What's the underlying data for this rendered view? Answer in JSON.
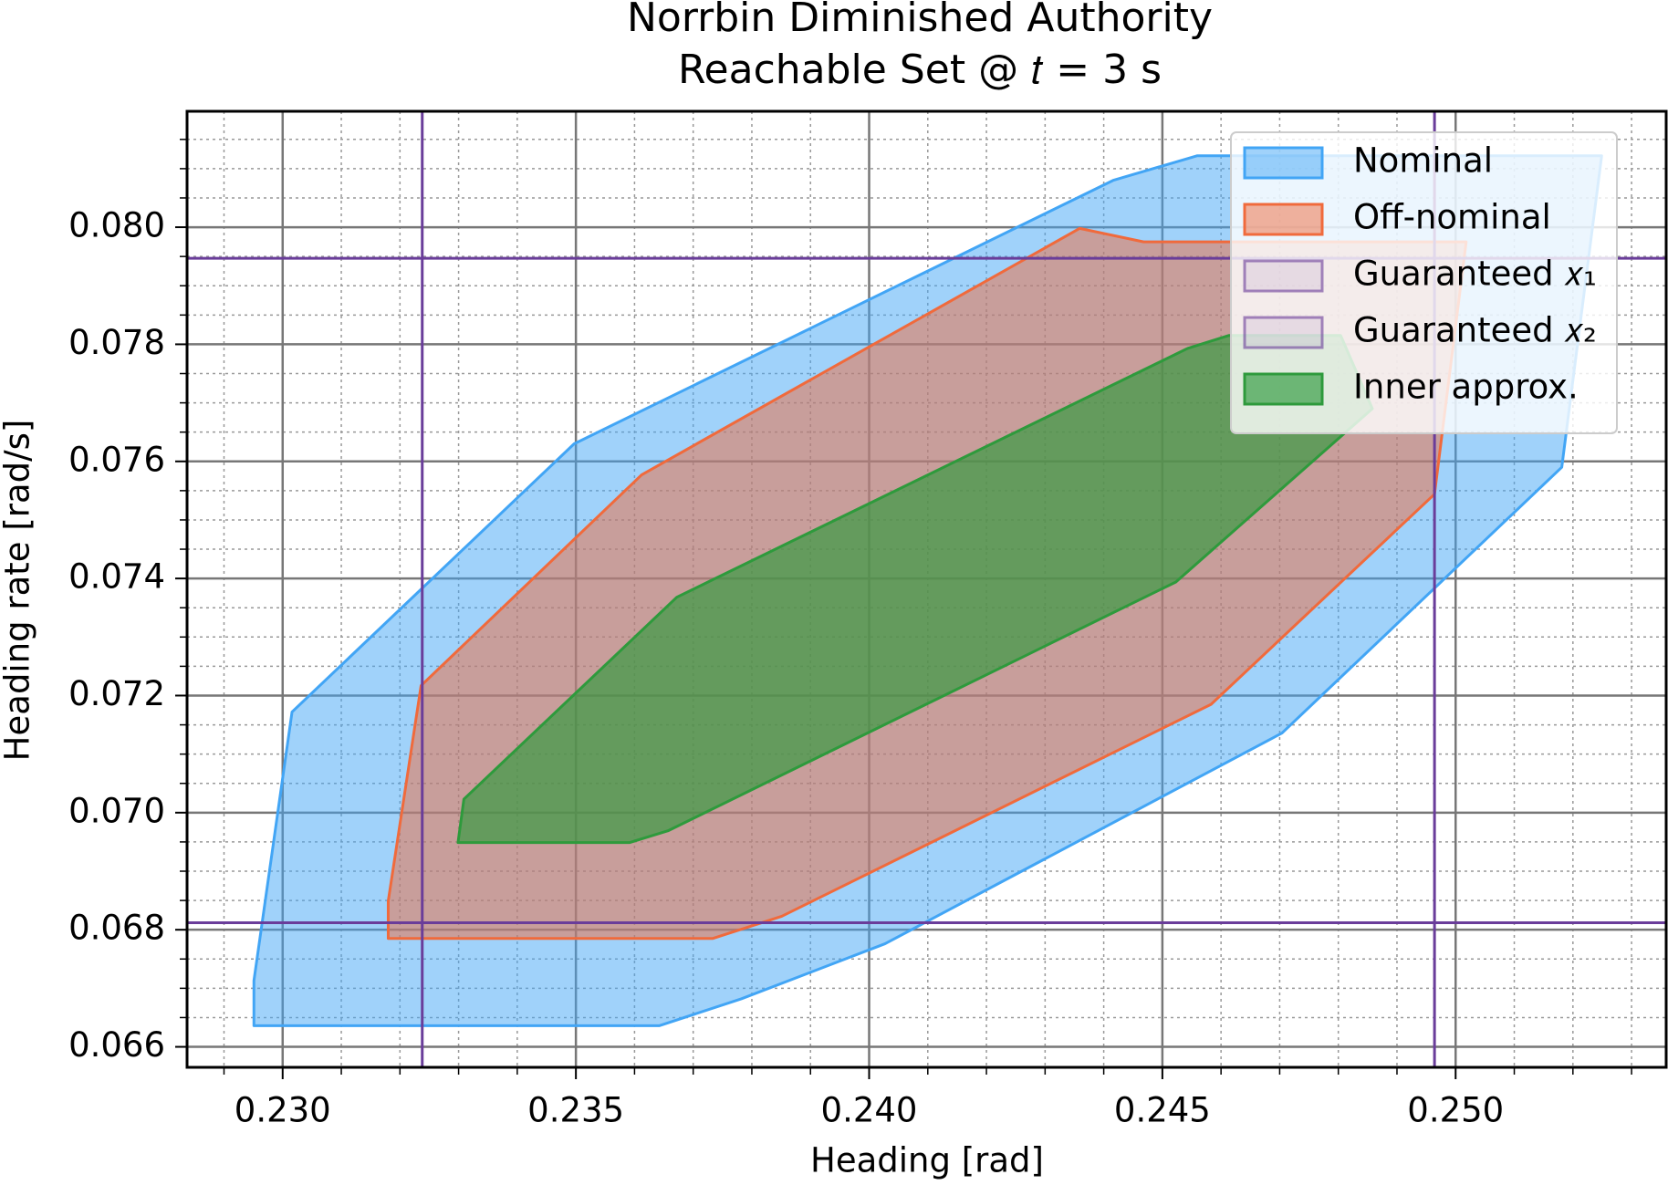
{
  "chart_data": {
    "type": "polygon",
    "title": [
      "Norrbin Diminished Authority",
      "Reachable Set @ 𝑡 = 3 s"
    ],
    "x_label": "Heading [rad]",
    "y_label": "Heading rate [rad/s]",
    "xlim": [
      0.22837,
      0.25359
    ],
    "ylim": [
      0.06565,
      0.08198
    ],
    "xticks": [
      {
        "value": 0.23,
        "label": "0.230"
      },
      {
        "value": 0.235,
        "label": "0.235"
      },
      {
        "value": 0.24,
        "label": "0.240"
      },
      {
        "value": 0.245,
        "label": "0.245"
      },
      {
        "value": 0.25,
        "label": "0.250"
      }
    ],
    "yticks": [
      {
        "value": 0.066,
        "label": "0.066"
      },
      {
        "value": 0.068,
        "label": "0.068"
      },
      {
        "value": 0.07,
        "label": "0.070"
      },
      {
        "value": 0.072,
        "label": "0.072"
      },
      {
        "value": 0.074,
        "label": "0.074"
      },
      {
        "value": 0.076,
        "label": "0.076"
      },
      {
        "value": 0.078,
        "label": "0.078"
      },
      {
        "value": 0.08,
        "label": "0.080"
      }
    ],
    "xminorticks": [
      0.229,
      0.231,
      0.232,
      0.233,
      0.234,
      0.236,
      0.237,
      0.238,
      0.239,
      0.241,
      0.242,
      0.243,
      0.244,
      0.246,
      0.247,
      0.248,
      0.249,
      0.251,
      0.252,
      0.253
    ],
    "yminorticks": [
      0.0665,
      0.067,
      0.0675,
      0.0685,
      0.069,
      0.0695,
      0.0705,
      0.071,
      0.0715,
      0.0725,
      0.073,
      0.0735,
      0.0745,
      0.075,
      0.0755,
      0.0765,
      0.077,
      0.0775,
      0.0785,
      0.079,
      0.0795,
      0.0805,
      0.081,
      0.0815
    ],
    "grid": true,
    "minor_grid": true,
    "legend": "upper right",
    "series": [
      {
        "name": "Nominal",
        "color": "#42a5f5",
        "alpha": 0.5,
        "x": [
          0.22951,
          0.22951,
          0.23016,
          0.23497,
          0.24416,
          0.24559,
          0.25249,
          0.25181,
          0.24704,
          0.24027,
          0.23782,
          0.23642
        ],
        "y": [
          0.06636,
          0.06713,
          0.07172,
          0.0763,
          0.0808,
          0.08122,
          0.08122,
          0.0759,
          0.07136,
          0.06776,
          0.06682,
          0.06636
        ]
      },
      {
        "name": "Off-nominal",
        "color": "#f06a3c",
        "alpha": 0.5,
        "x": [
          0.2318,
          0.2318,
          0.23236,
          0.23612,
          0.24359,
          0.24468,
          0.25018,
          0.24964,
          0.24583,
          0.23851,
          0.23733
        ],
        "y": [
          0.06785,
          0.06849,
          0.07217,
          0.07577,
          0.07998,
          0.07975,
          0.07975,
          0.07544,
          0.07185,
          0.06823,
          0.06785
        ]
      },
      {
        "name": "Guaranteed 𝑥₁",
        "color": "#6a3d9a",
        "alpha": 0.1,
        "vlines": [
          0.23238,
          0.24964
        ]
      },
      {
        "name": "Guaranteed 𝑥₂",
        "color": "#6a3d9a",
        "alpha": 0.1,
        "hlines": [
          0.06812,
          0.07947
        ]
      },
      {
        "name": "Inner approx.",
        "color": "#2e9a3c",
        "alpha": 0.65,
        "x": [
          0.23299,
          0.23309,
          0.23672,
          0.24543,
          0.24613,
          0.24804,
          0.24858,
          0.24523,
          0.23657,
          0.23592
        ],
        "y": [
          0.06949,
          0.07023,
          0.07368,
          0.07793,
          0.07815,
          0.07815,
          0.0769,
          0.07394,
          0.06969,
          0.06949
        ]
      }
    ]
  }
}
